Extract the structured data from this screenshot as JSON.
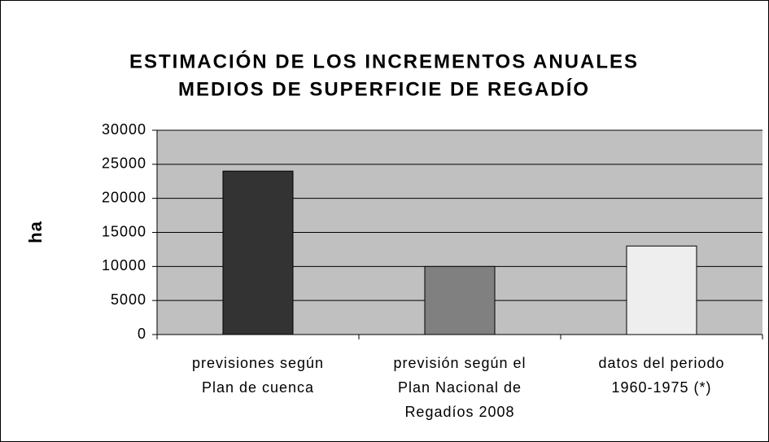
{
  "chart_data": {
    "type": "bar",
    "title": [
      "ESTIMACIÓN DE LOS INCREMENTOS ANUALES",
      "MEDIOS DE SUPERFICIE DE REGADÍO"
    ],
    "ylabel": "ha",
    "categories": [
      [
        "previsiones según",
        "Plan de cuenca"
      ],
      [
        "previsión según el",
        "Plan Nacional de",
        "Regadíos 2008"
      ],
      [
        "datos del periodo",
        "1960-1975 (*)"
      ]
    ],
    "values": [
      24000,
      10000,
      13000
    ],
    "colors": [
      "#333333",
      "#808080",
      "#eeeeee"
    ],
    "ylim": [
      0,
      30000
    ],
    "yticks": [
      0,
      5000,
      10000,
      15000,
      20000,
      25000,
      30000
    ],
    "grid": true
  }
}
